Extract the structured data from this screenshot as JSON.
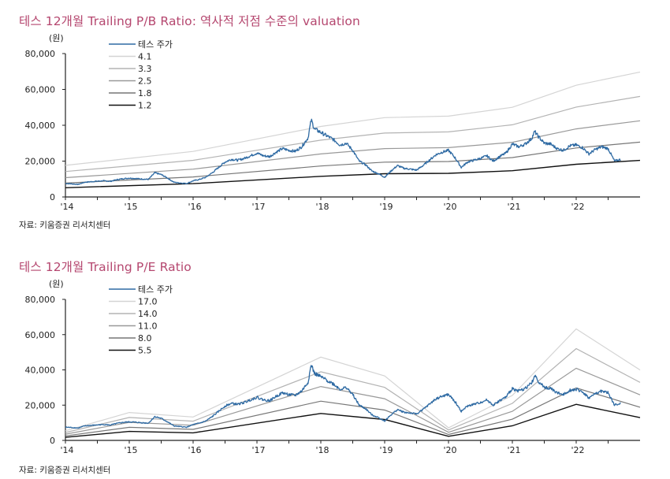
{
  "chart_data": [
    {
      "type": "line",
      "title": "테스 12개월 Trailing P/B Ratio: 역사적 저점 수준의 valuation",
      "ylabel": "(원)",
      "ylim": [
        0,
        80000
      ],
      "yticks": [
        "80,000",
        "60,000",
        "40,000",
        "20,000",
        "0"
      ],
      "ytick_values": [
        80000,
        60000,
        40000,
        20000,
        0
      ],
      "xlim": [
        2014.0,
        2023.0
      ],
      "xticks": [
        "'14",
        "'15",
        "'16",
        "'17",
        "'18",
        "'19",
        "'20",
        "'21",
        "'22"
      ],
      "xtick_values": [
        2014,
        2015,
        2016,
        2017,
        2018,
        2019,
        2020,
        2021,
        2022
      ],
      "legend_position": "top-left",
      "source": "자료: 키움증권 리서치센터",
      "price_series": {
        "name": "테스 주가",
        "color": "#2e6aa3",
        "x": [
          2014.0,
          2014.1,
          2014.2,
          2014.3,
          2014.4,
          2014.5,
          2014.6,
          2014.7,
          2014.8,
          2014.9,
          2015.0,
          2015.1,
          2015.2,
          2015.3,
          2015.4,
          2015.45,
          2015.5,
          2015.6,
          2015.7,
          2015.8,
          2015.9,
          2016.0,
          2016.1,
          2016.2,
          2016.3,
          2016.4,
          2016.5,
          2016.6,
          2016.7,
          2016.8,
          2016.9,
          2017.0,
          2017.1,
          2017.2,
          2017.3,
          2017.4,
          2017.5,
          2017.6,
          2017.7,
          2017.8,
          2017.85,
          2017.9,
          2018.0,
          2018.1,
          2018.2,
          2018.3,
          2018.4,
          2018.5,
          2018.6,
          2018.7,
          2018.8,
          2018.9,
          2019.0,
          2019.1,
          2019.2,
          2019.3,
          2019.4,
          2019.5,
          2019.6,
          2019.7,
          2019.8,
          2019.9,
          2020.0,
          2020.1,
          2020.2,
          2020.25,
          2020.3,
          2020.4,
          2020.5,
          2020.6,
          2020.7,
          2020.8,
          2020.9,
          2021.0,
          2021.1,
          2021.2,
          2021.3,
          2021.35,
          2021.4,
          2021.5,
          2021.6,
          2021.7,
          2021.8,
          2021.9,
          2022.0,
          2022.1,
          2022.2,
          2022.3,
          2022.4,
          2022.5,
          2022.6,
          2022.7
        ],
        "values": [
          7500,
          7300,
          7000,
          8200,
          8500,
          8800,
          9000,
          8700,
          9600,
          10200,
          10500,
          10300,
          10000,
          9800,
          13500,
          13000,
          12500,
          10500,
          8200,
          7800,
          7500,
          9000,
          9800,
          11000,
          13500,
          16500,
          19500,
          21000,
          20500,
          21500,
          23000,
          24500,
          23000,
          22500,
          25000,
          27000,
          26000,
          25500,
          28000,
          33000,
          43000,
          38000,
          36000,
          34000,
          32000,
          29000,
          30000,
          26000,
          20000,
          18000,
          14500,
          13000,
          11000,
          14500,
          17500,
          16000,
          15500,
          15000,
          17500,
          20500,
          23500,
          25000,
          26000,
          22000,
          16500,
          18000,
          19500,
          20500,
          21500,
          23000,
          20000,
          22500,
          24500,
          29500,
          28000,
          29500,
          32500,
          36500,
          34000,
          30000,
          29500,
          27000,
          26000,
          28500,
          29000,
          27500,
          24000,
          26500,
          28000,
          27000,
          20000,
          21000
        ]
      },
      "band_series": [
        {
          "name": "4.1",
          "color": "#d4d4d4",
          "multiple": 4.1
        },
        {
          "name": "3.3",
          "color": "#b3b3b3",
          "multiple": 3.3
        },
        {
          "name": "2.5",
          "color": "#999999",
          "multiple": 2.5
        },
        {
          "name": "1.8",
          "color": "#777777",
          "multiple": 1.8
        },
        {
          "name": "1.2",
          "color": "#111111",
          "multiple": 1.2
        }
      ],
      "band_base_x": [
        2014.0,
        2016.0,
        2018.0,
        2019.0,
        2020.0,
        2021.0,
        2022.0,
        2023.0
      ],
      "band_base_values_per_1x": [
        4300,
        6200,
        9600,
        10800,
        11000,
        12200,
        15200,
        17000
      ]
    },
    {
      "type": "line",
      "title": "테스 12개월 Trailing P/E Ratio",
      "ylabel": "(원)",
      "ylim": [
        0,
        80000
      ],
      "yticks": [
        "80,000",
        "60,000",
        "40,000",
        "20,000",
        "0"
      ],
      "ytick_values": [
        80000,
        60000,
        40000,
        20000,
        0
      ],
      "xlim": [
        2014.0,
        2023.0
      ],
      "xticks": [
        "'14",
        "'15",
        "'16",
        "'17",
        "'18",
        "'19",
        "'20",
        "'21",
        "'22"
      ],
      "xtick_values": [
        2014,
        2015,
        2016,
        2017,
        2018,
        2019,
        2020,
        2021,
        2022
      ],
      "legend_position": "top-left",
      "source": "자료: 키움증권 리서치센터",
      "price_series": {
        "name": "테스 주가",
        "color": "#2e6aa3",
        "use_same_as_chart": 0
      },
      "band_series": [
        {
          "name": "17.0",
          "color": "#d4d4d4",
          "multiple": 17.0
        },
        {
          "name": "14.0",
          "color": "#b3b3b3",
          "multiple": 14.0
        },
        {
          "name": "11.0",
          "color": "#999999",
          "multiple": 11.0
        },
        {
          "name": "8.0",
          "color": "#777777",
          "multiple": 8.0
        },
        {
          "name": "5.5",
          "color": "#111111",
          "multiple": 5.5
        }
      ],
      "band_base_x": [
        2014.0,
        2015.0,
        2016.0,
        2018.0,
        2019.0,
        2020.0,
        2021.0,
        2022.0,
        2023.0
      ],
      "band_base_values_per_1x": [
        320,
        930,
        780,
        2780,
        2150,
        420,
        1500,
        3720,
        2350
      ]
    }
  ]
}
